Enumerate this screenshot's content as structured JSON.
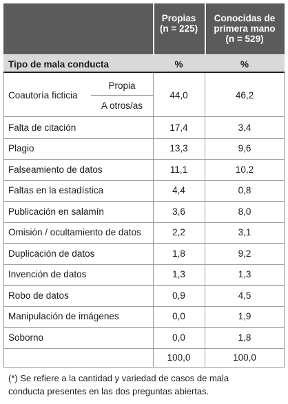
{
  "header": {
    "columns": [
      [
        "Propias",
        "(n = 225)"
      ],
      [
        "Conocidas de",
        "primera mano",
        "(n = 529)"
      ]
    ]
  },
  "subheader": {
    "label": "Tipo de mala conducta",
    "units": [
      "%",
      "%"
    ]
  },
  "coauthorship": {
    "label": "Coautoría ficticia",
    "sub": [
      "Propia",
      "A otros/as"
    ],
    "values": [
      "44,0",
      "46,2"
    ]
  },
  "rows": [
    [
      "Falta de citación",
      "17,4",
      "3,4"
    ],
    [
      "Plagio",
      "13,3",
      "9,6"
    ],
    [
      "Falseamiento de datos",
      "11,1",
      "10,2"
    ],
    [
      "Faltas en la estadística",
      "4,4",
      "0,8"
    ],
    [
      "Publicación en salamín",
      "3,6",
      "8,0"
    ],
    [
      "Omisión / ocultamiento de datos",
      "2,2",
      "3,1"
    ],
    [
      "Duplicación de datos",
      "1,8",
      "9,2"
    ],
    [
      "Invención de datos",
      "1,3",
      "1,3"
    ],
    [
      "Robo de datos",
      "0,9",
      "4,5"
    ],
    [
      "Manipulación de imágenes",
      "0,0",
      "1,9"
    ],
    [
      "Soborno",
      "0,0",
      "1,8"
    ]
  ],
  "total": [
    "100,0",
    "100,0"
  ],
  "footnote": [
    "(*) Se refiere a la cantidad y variedad de casos de mala",
    "conducta presentes en las dos preguntas abiertas."
  ]
}
